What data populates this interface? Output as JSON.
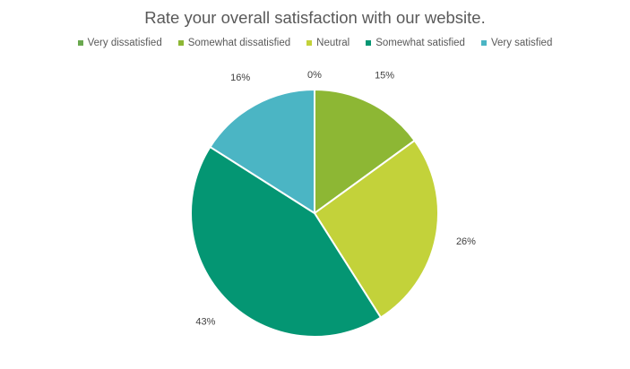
{
  "chart_data": {
    "type": "pie",
    "title": "Rate your overall satisfaction with our website.",
    "categories": [
      "Very dissatisfied",
      "Somewhat dissatisfied",
      "Neutral",
      "Somewhat satisfied",
      "Very satisfied"
    ],
    "values": [
      0,
      15,
      26,
      43,
      16
    ],
    "data_labels": [
      "0%",
      "15%",
      "26%",
      "43%",
      "16%"
    ],
    "colors": [
      "#6aa84f",
      "#8db734",
      "#c3d23a",
      "#049673",
      "#4bb5c4"
    ],
    "legend": "top-center",
    "unit": "%"
  }
}
